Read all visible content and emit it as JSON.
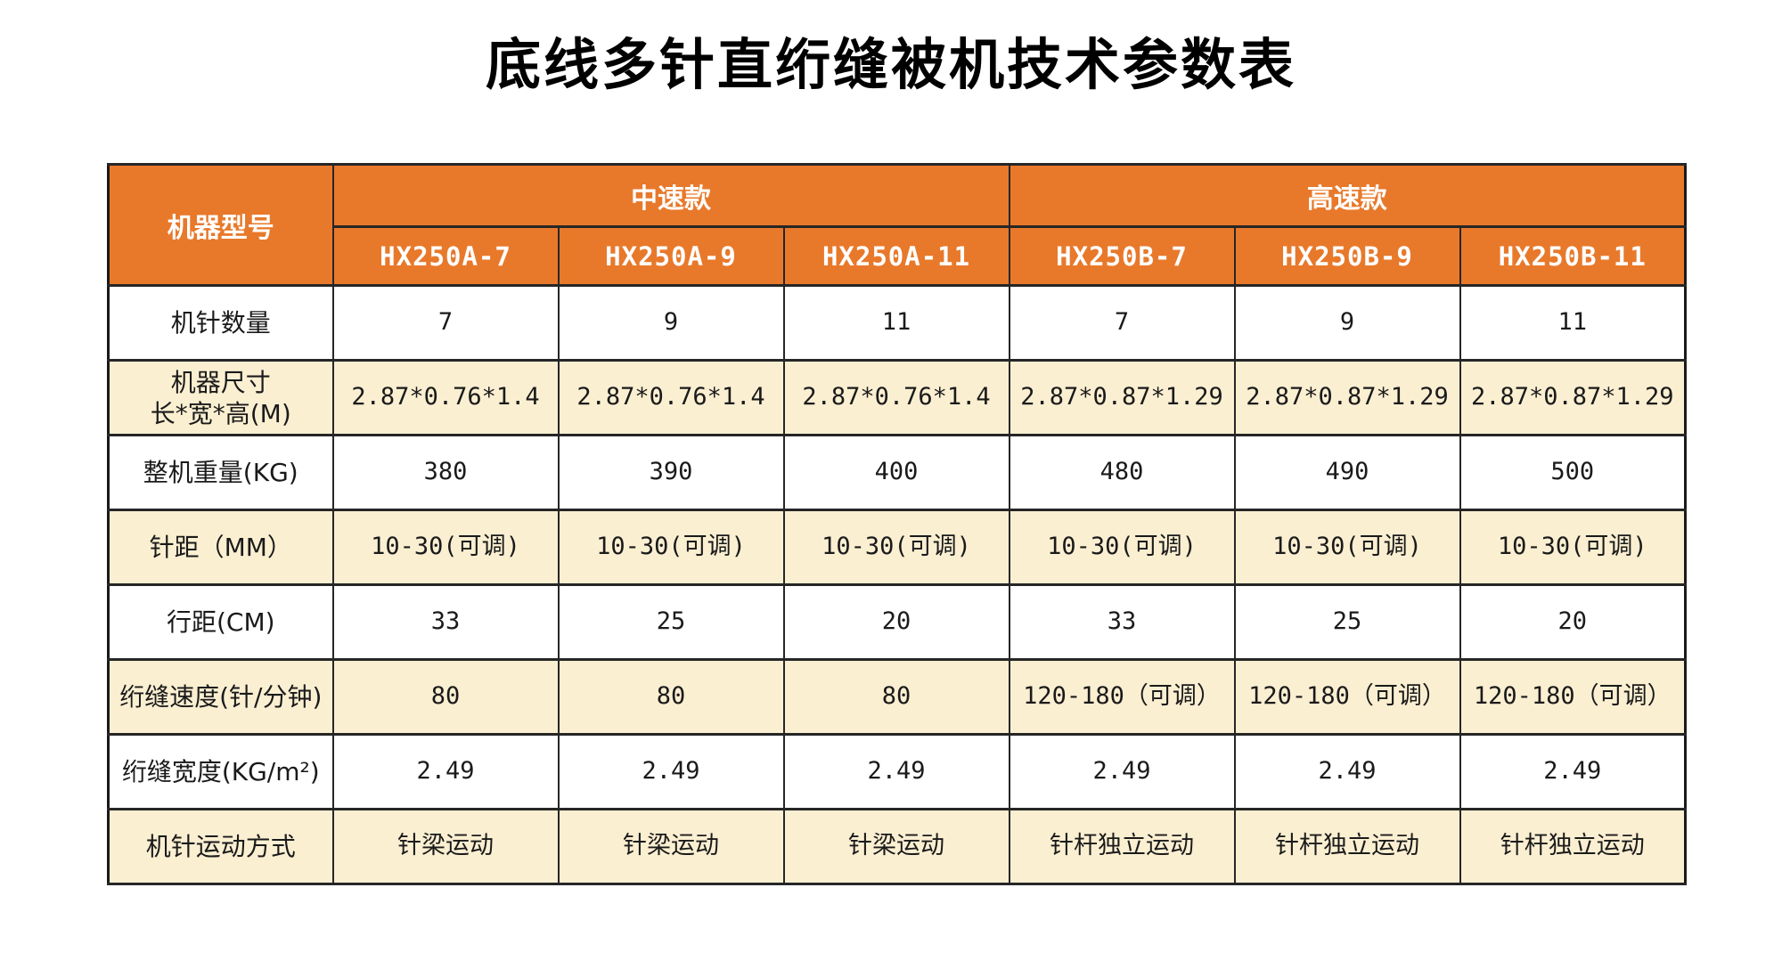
{
  "page": {
    "title": "底线多针直绗缝被机技术参数表"
  },
  "colors": {
    "header_bg": "#E8792B",
    "stripe_bg": "#FBEFD2",
    "row_bg": "#FFFFFF",
    "border": "#262626",
    "header_text": "#FFFFFF",
    "body_text": "#1A1A1A"
  },
  "table": {
    "corner_label": "机器型号",
    "groups": [
      {
        "label": "中速款",
        "models": [
          "HX250A-7",
          "HX250A-9",
          "HX250A-11"
        ]
      },
      {
        "label": "高速款",
        "models": [
          "HX250B-7",
          "HX250B-9",
          "HX250B-11"
        ]
      }
    ],
    "rows": [
      {
        "label": "机针数量",
        "values": [
          "7",
          "9",
          "11",
          "7",
          "9",
          "11"
        ],
        "striped": false
      },
      {
        "label": "机器尺寸\n长*宽*高(M)",
        "values": [
          "2.87*0.76*1.4",
          "2.87*0.76*1.4",
          "2.87*0.76*1.4",
          "2.87*0.87*1.29",
          "2.87*0.87*1.29",
          "2.87*0.87*1.29"
        ],
        "striped": true
      },
      {
        "label": "整机重量(KG)",
        "values": [
          "380",
          "390",
          "400",
          "480",
          "490",
          "500"
        ],
        "striped": false
      },
      {
        "label": "针距（MM）",
        "values": [
          "10-30(可调)",
          "10-30(可调)",
          "10-30(可调)",
          "10-30(可调)",
          "10-30(可调)",
          "10-30(可调)"
        ],
        "striped": true
      },
      {
        "label": "行距(CM)",
        "values": [
          "33",
          "25",
          "20",
          "33",
          "25",
          "20"
        ],
        "striped": false
      },
      {
        "label": "绗缝速度(针/分钟)",
        "values": [
          "80",
          "80",
          "80",
          "120-180（可调）",
          "120-180（可调）",
          "120-180（可调）"
        ],
        "striped": true
      },
      {
        "label": "绗缝宽度(KG/m²)",
        "values": [
          "2.49",
          "2.49",
          "2.49",
          "2.49",
          "2.49",
          "2.49"
        ],
        "striped": false
      },
      {
        "label": "机针运动方式",
        "values": [
          "针梁运动",
          "针梁运动",
          "针梁运动",
          "针杆独立运动",
          "针杆独立运动",
          "针杆独立运动"
        ],
        "striped": true
      }
    ]
  }
}
